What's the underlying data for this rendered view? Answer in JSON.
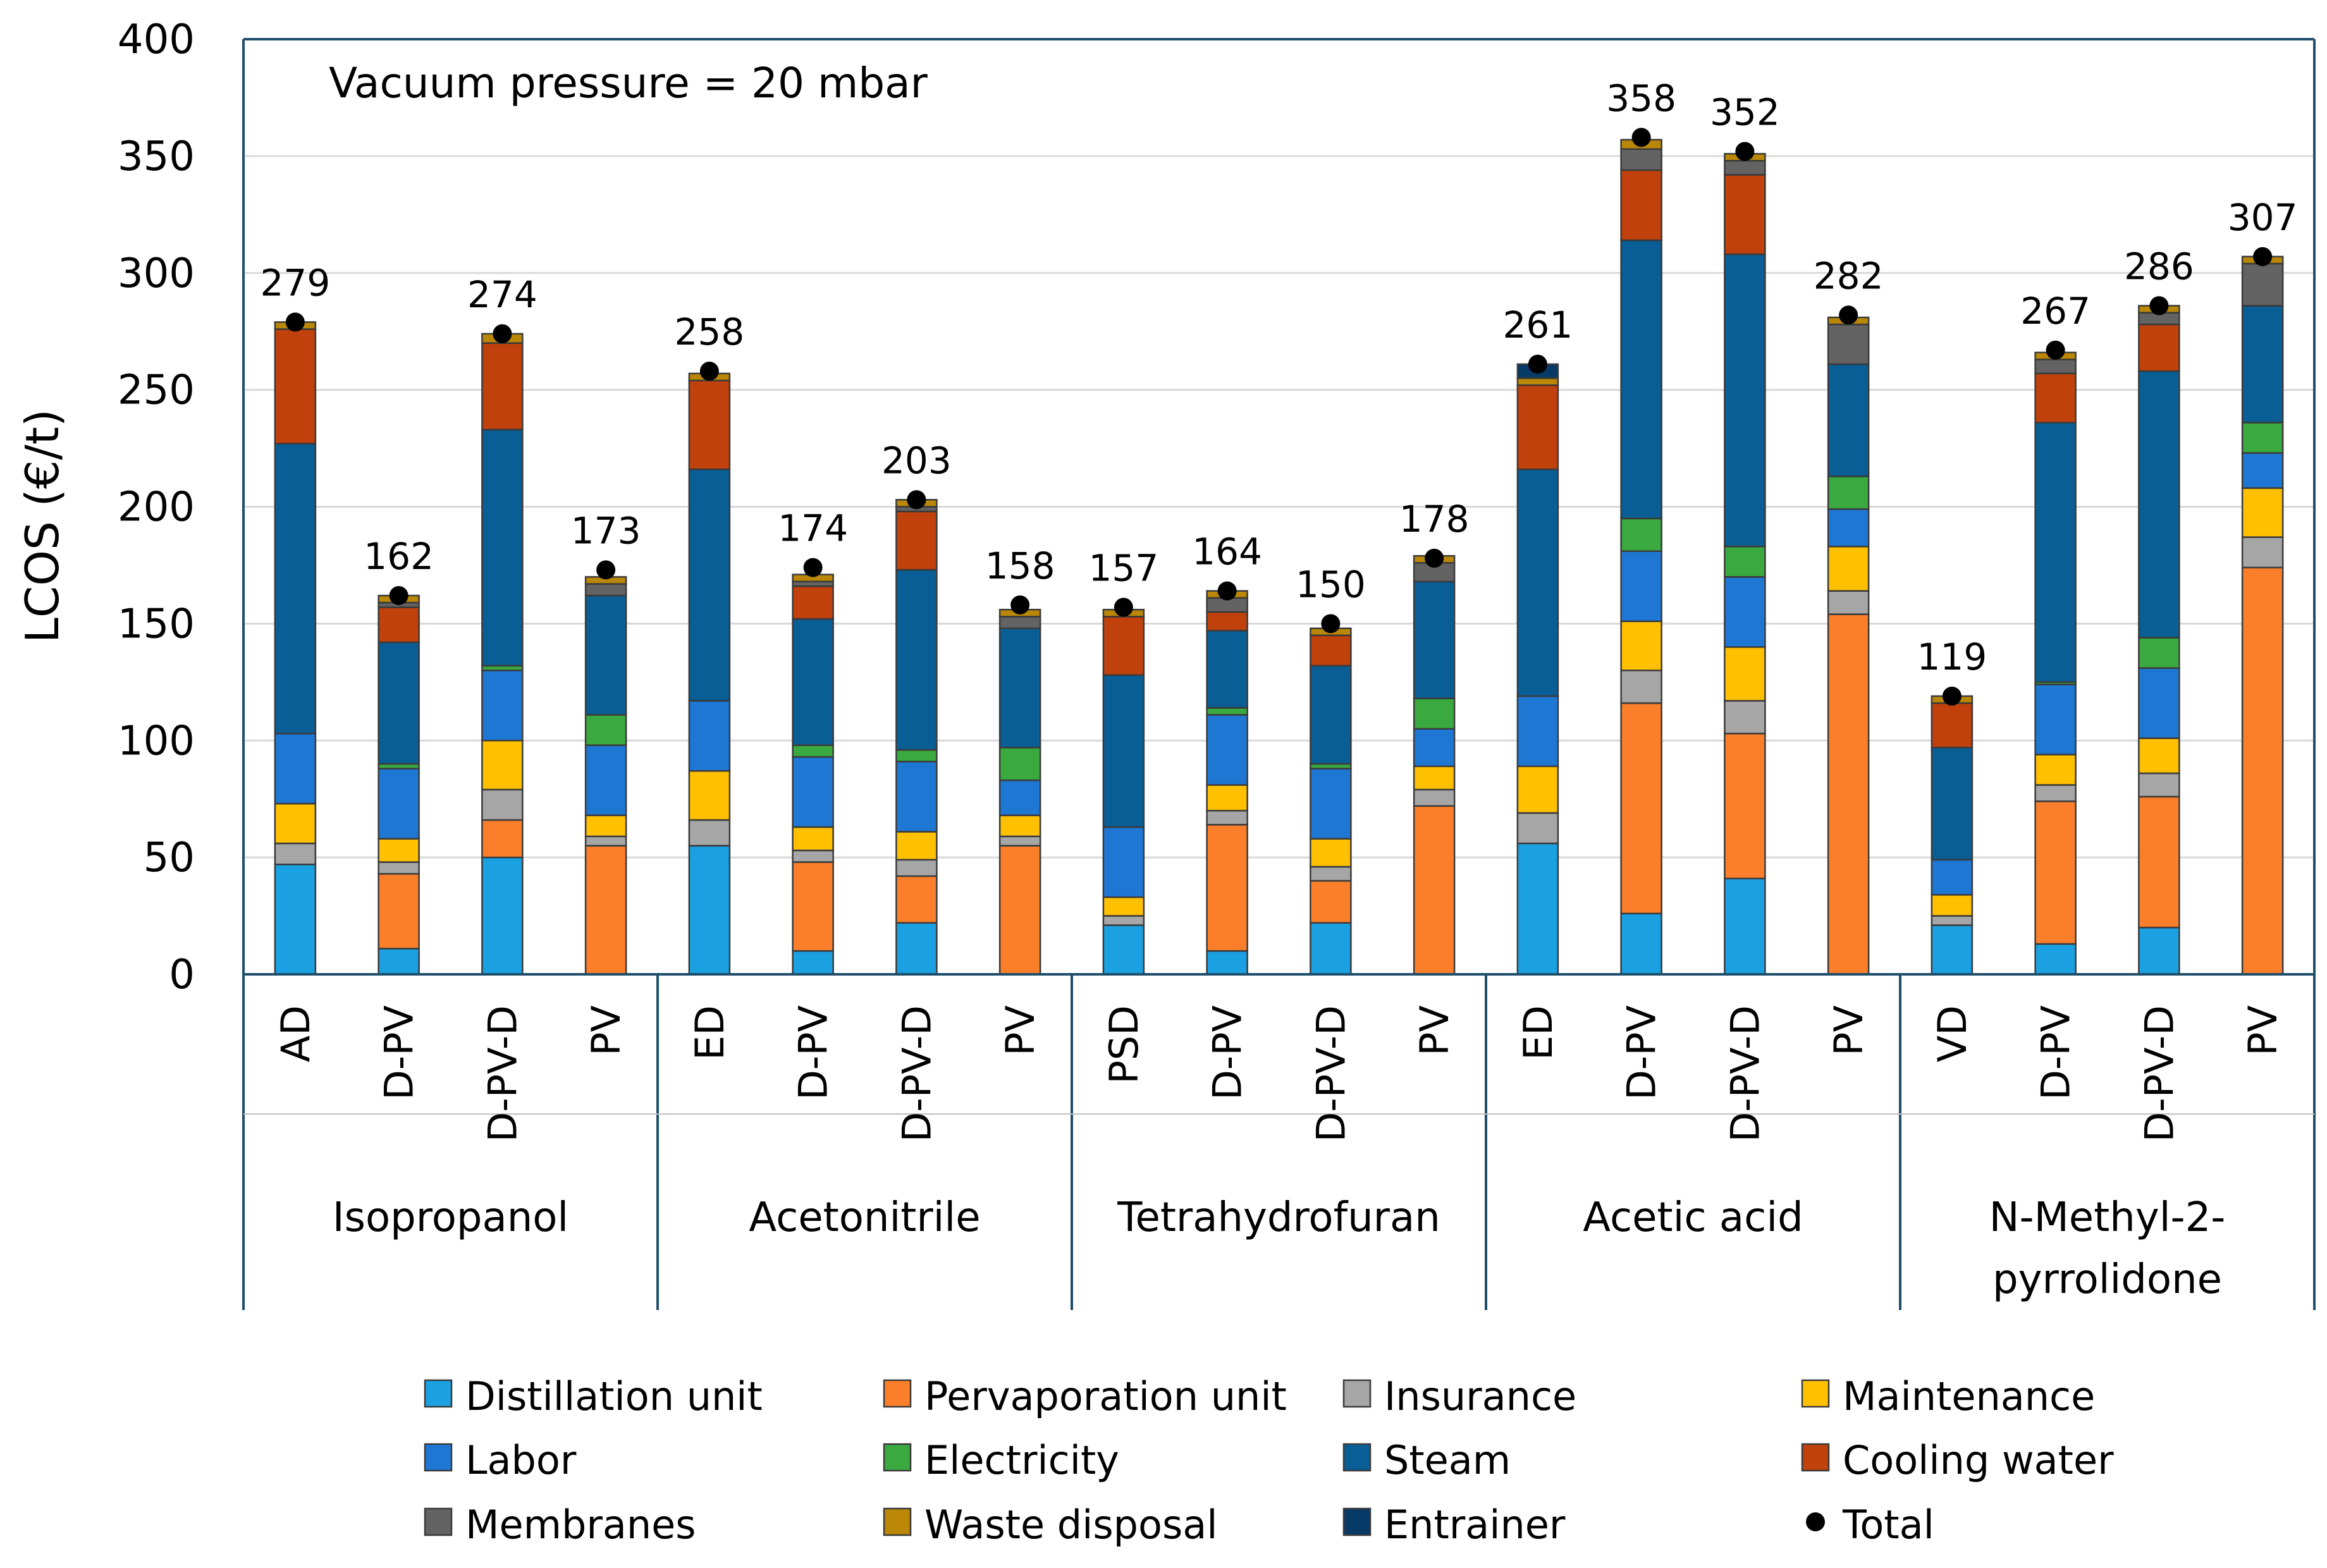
{
  "chart_data": {
    "type": "bar",
    "stacked": true,
    "annotation": "Vacuum pressure = 20 mbar",
    "ylabel": "LCOS (€/t)",
    "xlabel": "",
    "ylim": [
      0,
      400
    ],
    "yticks": [
      0,
      50,
      100,
      150,
      200,
      250,
      300,
      350,
      400
    ],
    "grid": true,
    "legend_position": "bottom",
    "groups": [
      {
        "name": "Isopropanol",
        "categories": [
          "AD",
          "D-PV",
          "D-PV-D",
          "PV"
        ]
      },
      {
        "name": "Acetonitrile",
        "categories": [
          "ED",
          "D-PV",
          "D-PV-D",
          "PV"
        ]
      },
      {
        "name": "Tetrahydrofuran",
        "categories": [
          "PSD",
          "D-PV",
          "D-PV-D",
          "PV"
        ]
      },
      {
        "name": "Acetic acid",
        "categories": [
          "ED",
          "D-PV",
          "D-PV-D",
          "PV"
        ]
      },
      {
        "name": "N-Methyl-2-pyrrolidone",
        "name_lines": [
          "N-Methyl-2-",
          "pyrrolidone"
        ],
        "categories": [
          "VD",
          "D-PV",
          "D-PV-D",
          "PV"
        ]
      }
    ],
    "series": [
      {
        "name": "Distillation unit",
        "color": "#1ba1e2",
        "values": [
          47,
          11,
          50,
          0,
          55,
          10,
          22,
          0,
          21,
          10,
          22,
          0,
          56,
          26,
          41,
          0,
          21,
          13,
          20,
          0
        ]
      },
      {
        "name": "Pervaporation unit",
        "color": "#fb7f2a",
        "values": [
          0,
          32,
          16,
          55,
          0,
          38,
          20,
          55,
          0,
          54,
          18,
          72,
          0,
          90,
          62,
          154,
          0,
          61,
          56,
          174
        ]
      },
      {
        "name": "Insurance",
        "color": "#a6a6a6",
        "values": [
          9,
          5,
          13,
          4,
          11,
          5,
          7,
          4,
          4,
          6,
          6,
          7,
          13,
          14,
          14,
          10,
          4,
          7,
          10,
          13
        ]
      },
      {
        "name": "Maintenance",
        "color": "#ffc000",
        "values": [
          17,
          10,
          21,
          9,
          21,
          10,
          12,
          9,
          8,
          11,
          12,
          10,
          20,
          21,
          23,
          19,
          9,
          13,
          15,
          21
        ]
      },
      {
        "name": "Labor",
        "color": "#1f77d4",
        "values": [
          30,
          30,
          30,
          30,
          30,
          30,
          30,
          15,
          30,
          30,
          30,
          16,
          30,
          30,
          30,
          16,
          15,
          30,
          30,
          15
        ]
      },
      {
        "name": "Electricity",
        "color": "#3aa93f",
        "values": [
          0,
          2,
          2,
          13,
          0,
          5,
          5,
          14,
          0,
          3,
          2,
          13,
          0,
          14,
          13,
          14,
          0,
          1,
          13,
          13
        ]
      },
      {
        "name": "Steam",
        "color": "#0a5e96",
        "values": [
          124,
          52,
          101,
          51,
          99,
          54,
          77,
          51,
          65,
          33,
          42,
          50,
          97,
          119,
          125,
          48,
          48,
          111,
          114,
          50
        ]
      },
      {
        "name": "Cooling water",
        "color": "#c0410c",
        "values": [
          49,
          15,
          37,
          0,
          38,
          14,
          25,
          0,
          25,
          8,
          13,
          0,
          36,
          30,
          34,
          0,
          19,
          21,
          20,
          0
        ]
      },
      {
        "name": "Membranes",
        "color": "#636363",
        "values": [
          0,
          2,
          0,
          5,
          0,
          2,
          2,
          5,
          0,
          6,
          0,
          8,
          0,
          9,
          6,
          17,
          0,
          6,
          5,
          18
        ]
      },
      {
        "name": "Waste disposal",
        "color": "#ba8706",
        "values": [
          3,
          3,
          4,
          3,
          3,
          3,
          3,
          3,
          3,
          3,
          3,
          3,
          3,
          4,
          3,
          3,
          3,
          3,
          3,
          3
        ]
      },
      {
        "name": "Entrainer",
        "color": "#073a66",
        "values": [
          0,
          0,
          0,
          0,
          0,
          0,
          0,
          0,
          0,
          0,
          0,
          0,
          6,
          0,
          0,
          0,
          0,
          0,
          0,
          0
        ]
      }
    ],
    "total": {
      "name": "Total",
      "color": "#000000",
      "values": [
        279,
        162,
        274,
        173,
        258,
        174,
        203,
        158,
        157,
        164,
        150,
        178,
        261,
        358,
        352,
        282,
        119,
        267,
        286,
        307
      ]
    }
  }
}
